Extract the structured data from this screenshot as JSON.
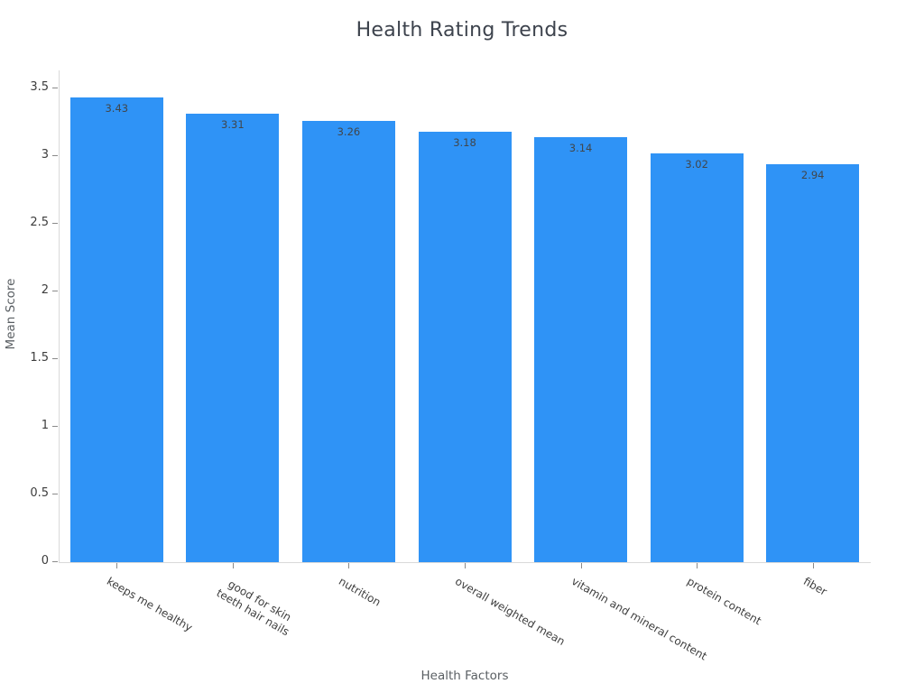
{
  "chart_data": {
    "type": "bar",
    "title": "Health Rating Trends",
    "xlabel": "Health Factors",
    "ylabel": "Mean Score",
    "categories": [
      "keeps me healthy",
      "good for skin\nteeth hair nails",
      "nutrition",
      "overall weighted mean",
      "vitamin and mineral content",
      "protein content",
      "fiber"
    ],
    "values": [
      3.43,
      3.31,
      3.26,
      3.18,
      3.14,
      3.02,
      2.94
    ],
    "value_labels": [
      "3.43",
      "3.31",
      "3.26",
      "3.18",
      "3.14",
      "3.02",
      "2.94"
    ],
    "ylim": [
      0,
      3.63
    ],
    "yticks": [
      0,
      0.5,
      1,
      1.5,
      2,
      2.5,
      3,
      3.5
    ],
    "ytick_labels": [
      "0",
      "0.5",
      "1",
      "1.5",
      "2",
      "2.5",
      "3",
      "3.5"
    ],
    "bar_color": "#2f93f6",
    "value_label_color": "#41464b",
    "grid": false,
    "legend": "none",
    "x_tick_rotation_deg": 30
  }
}
